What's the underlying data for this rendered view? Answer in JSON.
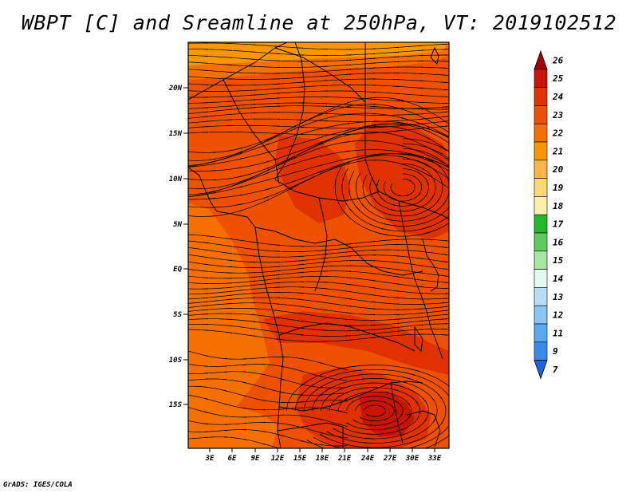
{
  "title": "WBPT [C] and Sreamline at 250hPa, VT: 2019102512",
  "credit": "GrADS: IGES/COLA",
  "map": {
    "lat_ticks": [
      "20N",
      "15N",
      "10N",
      "5N",
      "EQ",
      "5S",
      "10S",
      "15S"
    ],
    "lon_ticks": [
      "3E",
      "6E",
      "9E",
      "12E",
      "15E",
      "18E",
      "21E",
      "24E",
      "27E",
      "30E",
      "33E"
    ],
    "field": "wet-bulb potential temperature shaded, 250 hPa streamlines overlaid"
  },
  "colorbar": {
    "labels": [
      "26",
      "25",
      "24",
      "23",
      "22",
      "21",
      "20",
      "19",
      "18",
      "17",
      "16",
      "15",
      "14",
      "13",
      "12",
      "11",
      "9",
      "7"
    ],
    "colors": [
      "#a50000",
      "#c81400",
      "#e03200",
      "#ec5000",
      "#f57000",
      "#fa9600",
      "#fbb44a",
      "#fbd873",
      "#fbf1a8",
      "#22b82c",
      "#5ccd5a",
      "#a6e6a0",
      "#e6f8f2",
      "#b8dcf6",
      "#8cc4f2",
      "#5aa8ee",
      "#3a8ae8",
      "#1f62de"
    ]
  }
}
